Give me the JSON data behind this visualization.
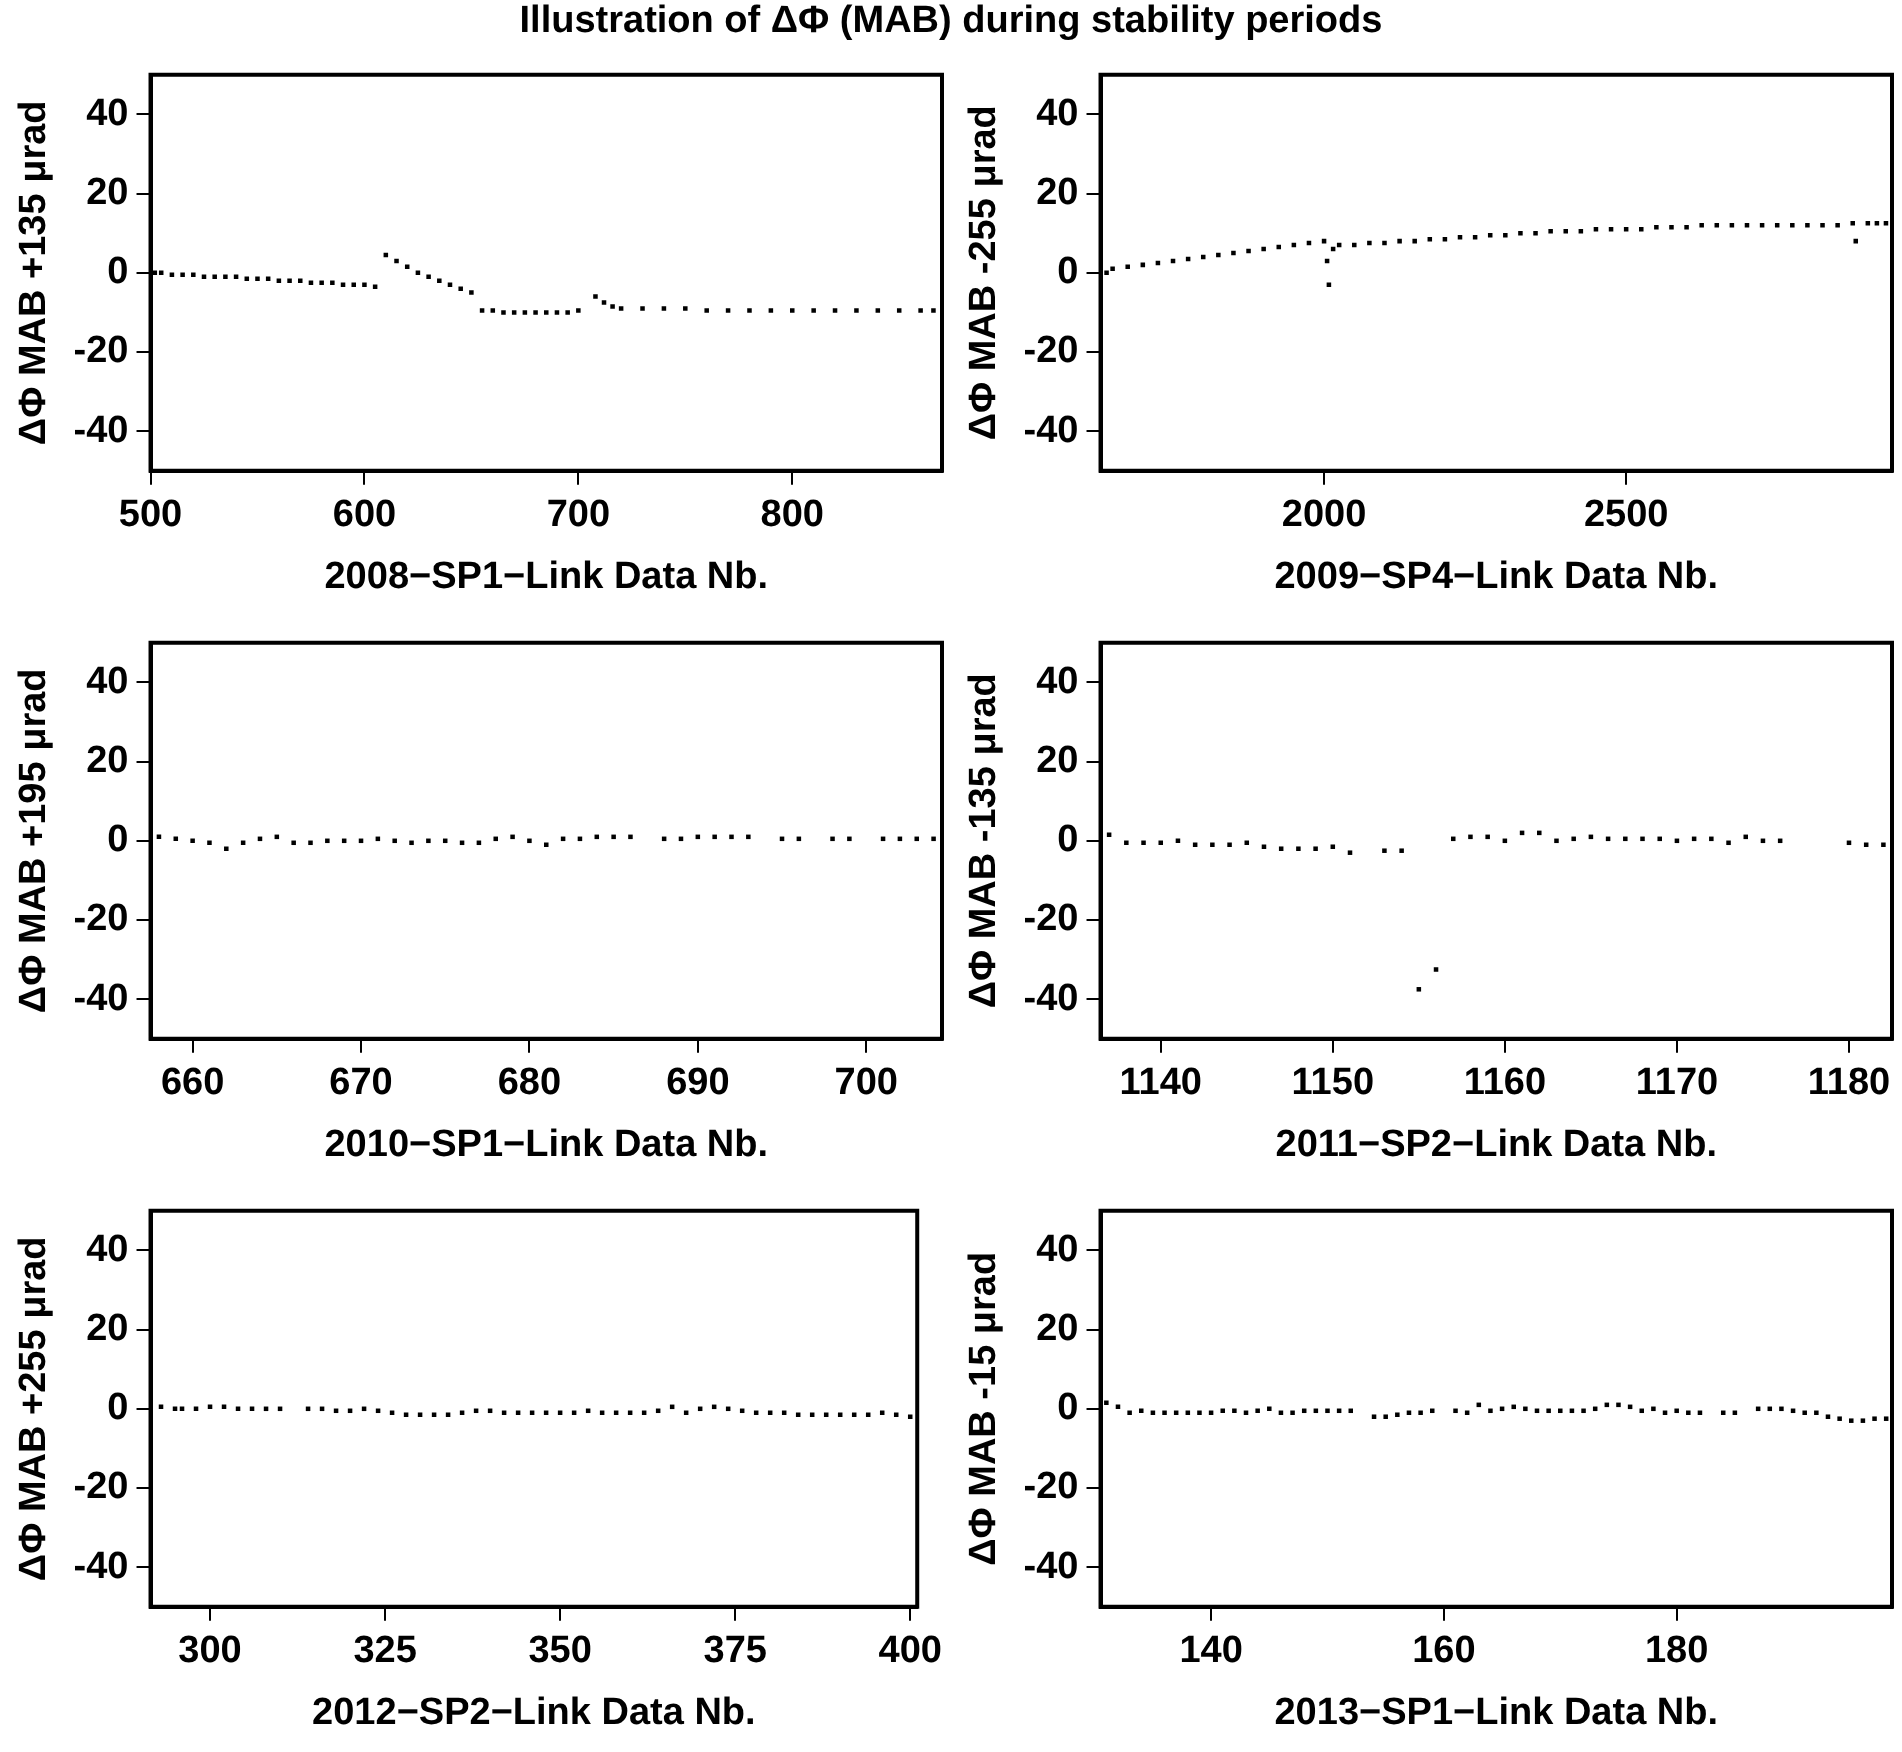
{
  "chart_data": [
    {
      "type": "scatter",
      "title": "Illustration of ΔΦ (MAB) during stability periods",
      "xlabel": "2008−SP1−Link Data Nb.",
      "ylabel": "ΔΦ MAB +135 μrad",
      "marker": "square",
      "xlim": [
        500,
        870
      ],
      "xticks": [
        500,
        600,
        700,
        800
      ],
      "ylim": [
        -50,
        50
      ],
      "yticks": [
        -40,
        -20,
        0,
        20,
        40
      ],
      "series": [
        {
          "color": "#000000",
          "x": [
            502,
            505,
            510,
            515,
            520,
            525,
            530,
            535,
            540,
            545,
            550,
            555,
            560,
            565,
            570,
            575,
            580,
            585,
            590,
            595,
            600,
            605,
            610,
            615,
            620,
            625,
            630,
            635,
            640,
            645,
            650,
            655,
            660,
            665,
            670,
            675,
            680,
            685,
            690,
            695,
            700,
            708,
            712,
            716,
            720,
            730,
            740,
            750,
            760,
            770,
            780,
            790,
            800,
            810,
            820,
            830,
            840,
            850,
            860,
            866
          ],
          "values": [
            0,
            0,
            -0.5,
            -0.5,
            -0.5,
            -1,
            -1,
            -1,
            -1,
            -1.5,
            -1.5,
            -1.5,
            -2,
            -2,
            -2,
            -2.5,
            -2.5,
            -2.5,
            -3,
            -3,
            -3,
            -3.5,
            4.5,
            3,
            1.5,
            0,
            -1,
            -2,
            -3,
            -4,
            -5,
            -9.5,
            -9.5,
            -10,
            -10,
            -10,
            -10,
            -10,
            -10,
            -10,
            -9.5,
            -6,
            -7.5,
            -8.5,
            -9,
            -9,
            -9,
            -9,
            -9.5,
            -9.5,
            -9.5,
            -9.5,
            -9.5,
            -9.5,
            -9.5,
            -9.5,
            -9.5,
            -9.5,
            -9.5,
            -9.5
          ]
        }
      ]
    },
    {
      "type": "scatter",
      "xlabel": "2009−SP4−Link Data Nb.",
      "ylabel": "ΔΦ MAB -255 μrad",
      "marker": "square",
      "xlim": [
        1630,
        2940
      ],
      "xticks": [
        2000,
        2500
      ],
      "ylim": [
        -50,
        50
      ],
      "yticks": [
        -40,
        -20,
        0,
        20,
        40
      ],
      "series": [
        {
          "color": "#000000",
          "x": [
            1640,
            1650,
            1675,
            1700,
            1725,
            1750,
            1775,
            1800,
            1825,
            1850,
            1875,
            1900,
            1925,
            1950,
            1975,
            2000,
            2005,
            2008,
            2015,
            2025,
            2050,
            2075,
            2100,
            2125,
            2150,
            2175,
            2200,
            2225,
            2250,
            2275,
            2300,
            2325,
            2350,
            2375,
            2400,
            2425,
            2450,
            2475,
            2500,
            2525,
            2550,
            2575,
            2600,
            2625,
            2650,
            2675,
            2700,
            2725,
            2750,
            2775,
            2800,
            2825,
            2850,
            2875,
            2880,
            2900,
            2915,
            2930
          ],
          "values": [
            0,
            1,
            1.5,
            2,
            2.5,
            3,
            3.5,
            4,
            4.5,
            5,
            5.5,
            6,
            6.5,
            7,
            7.5,
            8,
            3,
            -3,
            6,
            7,
            7,
            7.5,
            7.5,
            8,
            8,
            8.5,
            8.5,
            9,
            9,
            9.5,
            9.5,
            10,
            10,
            10.5,
            10.5,
            10.5,
            11,
            11,
            11,
            11,
            11.5,
            11.5,
            11.5,
            12,
            12,
            12,
            12,
            12,
            12,
            12,
            12,
            12,
            12,
            12.5,
            8,
            12.5,
            12.5,
            12.5
          ]
        }
      ]
    },
    {
      "type": "scatter",
      "xlabel": "2010−SP1−Link Data Nb.",
      "ylabel": "ΔΦ MAB +195 μrad",
      "marker": "square",
      "xlim": [
        657.5,
        704.5
      ],
      "xticks": [
        660,
        670,
        680,
        690,
        700
      ],
      "ylim": [
        -50,
        50
      ],
      "yticks": [
        -40,
        -20,
        0,
        20,
        40
      ],
      "series": [
        {
          "color": "#000000",
          "x": [
            658,
            659,
            660,
            661,
            662,
            663,
            664,
            665,
            666,
            667,
            668,
            669,
            670,
            671,
            672,
            673,
            674,
            675,
            676,
            677,
            678,
            679,
            680,
            681,
            682,
            683,
            684,
            685,
            686,
            688,
            689,
            690,
            691,
            692,
            693,
            695,
            696,
            698,
            699,
            701,
            702,
            703,
            704
          ],
          "values": [
            1,
            0.5,
            0,
            -0.5,
            -2,
            -0.5,
            0.5,
            1,
            -0.5,
            -0.5,
            0,
            0,
            0,
            0.5,
            0,
            -0.5,
            0,
            0,
            -0.5,
            -0.5,
            0.5,
            1,
            0,
            -1,
            0.5,
            0.5,
            1,
            1,
            1,
            0.5,
            0.5,
            1,
            1,
            1,
            1,
            0.5,
            0.5,
            0.5,
            0.5,
            0.5,
            0.5,
            0.5,
            0.5
          ]
        }
      ]
    },
    {
      "type": "scatter",
      "xlabel": "2011−SP2−Link Data Nb.",
      "ylabel": "ΔΦ MAB -135 μrad",
      "marker": "square",
      "xlim": [
        1136.5,
        1182.5
      ],
      "xticks": [
        1140,
        1150,
        1160,
        1170,
        1180
      ],
      "ylim": [
        -50,
        50
      ],
      "yticks": [
        -40,
        -20,
        0,
        20,
        40
      ],
      "series": [
        {
          "color": "#000000",
          "x": [
            1137,
            1138,
            1139,
            1140,
            1141,
            1142,
            1143,
            1144,
            1145,
            1146,
            1147,
            1148,
            1149,
            1150,
            1151,
            1153,
            1154,
            1155,
            1156,
            1157,
            1158,
            1159,
            1160,
            1161,
            1162,
            1163,
            1164,
            1165,
            1166,
            1167,
            1168,
            1169,
            1170,
            1171,
            1172,
            1173,
            1174,
            1175,
            1176,
            1180,
            1181,
            1182
          ],
          "values": [
            1.5,
            -0.5,
            -0.5,
            -0.5,
            0,
            -1,
            -1,
            -1,
            -0.5,
            -1.5,
            -2,
            -2,
            -2,
            -1.5,
            -3,
            -2.5,
            -2.5,
            -37.5,
            -32.5,
            0.5,
            1,
            1,
            0,
            2,
            2,
            0,
            0.5,
            1,
            0.5,
            0.5,
            0.5,
            0.5,
            0,
            0.5,
            0.5,
            -0.5,
            1,
            0,
            0,
            -0.5,
            -1,
            -1
          ]
        }
      ]
    },
    {
      "type": "scatter",
      "xlabel": "2012−SP2−Link Data Nb.",
      "ylabel": "ΔΦ MAB +255 μrad",
      "marker": "square",
      "xlim": [
        291.5,
        401
      ],
      "xticks": [
        300,
        325,
        350,
        375,
        400
      ],
      "ylim": [
        -50,
        50
      ],
      "yticks": [
        -40,
        -20,
        0,
        20,
        40
      ],
      "series": [
        {
          "color": "#000000",
          "x": [
            293,
            295,
            296,
            298,
            300,
            302,
            304,
            306,
            308,
            310,
            314,
            316,
            318,
            320,
            322,
            324,
            326,
            328,
            330,
            332,
            334,
            336,
            338,
            340,
            342,
            344,
            346,
            348,
            350,
            352,
            354,
            356,
            358,
            360,
            362,
            364,
            366,
            368,
            370,
            372,
            374,
            376,
            378,
            380,
            382,
            384,
            386,
            388,
            390,
            392,
            394,
            396,
            398,
            400
          ],
          "values": [
            0.5,
            0,
            0,
            0,
            0.5,
            0.5,
            0,
            0,
            0,
            0,
            0,
            0,
            -0.5,
            -0.5,
            0,
            -0.5,
            -1,
            -1.5,
            -1.5,
            -1.5,
            -1.5,
            -1,
            -0.5,
            -0.5,
            -1,
            -1,
            -1,
            -1,
            -1,
            -1,
            -0.5,
            -1,
            -1,
            -1,
            -1,
            -0.5,
            0.5,
            -1,
            0,
            0.5,
            0,
            -0.5,
            -1,
            -1,
            -1,
            -1.5,
            -1.5,
            -1.5,
            -1.5,
            -1.5,
            -1.5,
            -1,
            -1.5,
            -2
          ]
        }
      ]
    },
    {
      "type": "scatter",
      "xlabel": "2013−SP1−Link Data Nb.",
      "ylabel": "ΔΦ MAB -15 μrad",
      "marker": "square",
      "xlim": [
        130.5,
        198.5
      ],
      "xticks": [
        140,
        160,
        180
      ],
      "ylim": [
        -50,
        50
      ],
      "yticks": [
        -40,
        -20,
        0,
        20,
        40
      ],
      "series": [
        {
          "color": "#000000",
          "x": [
            131,
            132,
            133,
            134,
            135,
            136,
            137,
            138,
            139,
            140,
            141,
            142,
            143,
            144,
            145,
            146,
            147,
            148,
            149,
            150,
            151,
            152,
            154,
            155,
            156,
            157,
            158,
            159,
            161,
            162,
            163,
            164,
            165,
            166,
            167,
            168,
            169,
            170,
            171,
            172,
            173,
            174,
            175,
            176,
            177,
            178,
            179,
            180,
            181,
            182,
            184,
            185,
            187,
            188,
            189,
            190,
            191,
            192,
            193,
            194,
            195,
            196,
            197,
            198
          ],
          "values": [
            1.5,
            0.5,
            -1,
            -0.5,
            -1,
            -1,
            -1,
            -1,
            -1,
            -1,
            -0.5,
            -0.5,
            -1,
            -0.5,
            0,
            -1,
            -1,
            -0.5,
            -0.5,
            -0.5,
            -0.5,
            -0.5,
            -2,
            -2,
            -1.5,
            -1,
            -1,
            -0.5,
            -0.5,
            -1,
            1,
            -0.5,
            0,
            0.5,
            0,
            -0.5,
            -0.5,
            -0.5,
            -0.5,
            -0.5,
            0,
            1,
            1,
            0.5,
            -0.5,
            0,
            -1,
            -0.5,
            -1,
            -1,
            -1,
            -1,
            0,
            0,
            0,
            -0.5,
            -1,
            -1,
            -2,
            -2.5,
            -3,
            -3,
            -2.5,
            -2.5
          ]
        }
      ]
    }
  ]
}
